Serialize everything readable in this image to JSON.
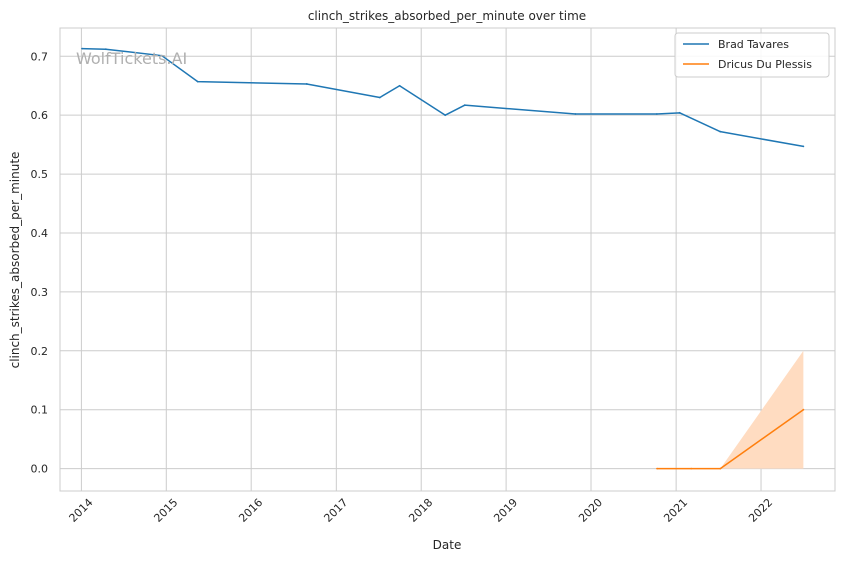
{
  "chart_data": {
    "type": "line",
    "title": "clinch_strikes_absorbed_per_minute over time",
    "xlabel": "Date",
    "ylabel": "clinch_strikes_absorbed_per_minute",
    "x_ticks": [
      "2014",
      "2015",
      "2016",
      "2017",
      "2018",
      "2019",
      "2020",
      "2021",
      "2022"
    ],
    "y_ticks": [
      "0.0",
      "0.1",
      "0.2",
      "0.3",
      "0.4",
      "0.5",
      "0.6",
      "0.7"
    ],
    "xlim": [
      "2013-10-01",
      "2022-11-15"
    ],
    "ylim": [
      -0.038,
      0.748
    ],
    "grid": true,
    "legend_position": "top-right",
    "watermark": "WolfTickets.AI",
    "series": [
      {
        "name": "Brad Tavares",
        "color": "#1f77b4",
        "points": [
          {
            "x": "2014-01-04",
            "y": 0.713
          },
          {
            "x": "2014-04-16",
            "y": 0.712
          },
          {
            "x": "2014-12-13",
            "y": 0.701
          },
          {
            "x": "2015-05-16",
            "y": 0.657
          },
          {
            "x": "2016-08-27",
            "y": 0.653
          },
          {
            "x": "2017-07-07",
            "y": 0.63
          },
          {
            "x": "2017-09-30",
            "y": 0.65
          },
          {
            "x": "2018-04-14",
            "y": 0.6
          },
          {
            "x": "2018-07-07",
            "y": 0.617
          },
          {
            "x": "2019-10-26",
            "y": 0.602
          },
          {
            "x": "2020-10-10",
            "y": 0.602
          },
          {
            "x": "2021-01-16",
            "y": 0.604
          },
          {
            "x": "2021-07-10",
            "y": 0.572
          },
          {
            "x": "2022-07-02",
            "y": 0.547
          }
        ]
      },
      {
        "name": "Dricus Du Plessis",
        "color": "#ff7f0e",
        "band_color": "#ffdcc1",
        "points": [
          {
            "x": "2020-10-11",
            "y": 0.0,
            "lo": 0.0,
            "hi": 0.0
          },
          {
            "x": "2021-03-07",
            "y": 0.0,
            "lo": 0.0,
            "hi": 0.0
          },
          {
            "x": "2021-07-10",
            "y": 0.0,
            "lo": 0.0,
            "hi": 0.0
          },
          {
            "x": "2022-07-02",
            "y": 0.1,
            "lo": 0.0,
            "hi": 0.2
          }
        ]
      }
    ]
  }
}
